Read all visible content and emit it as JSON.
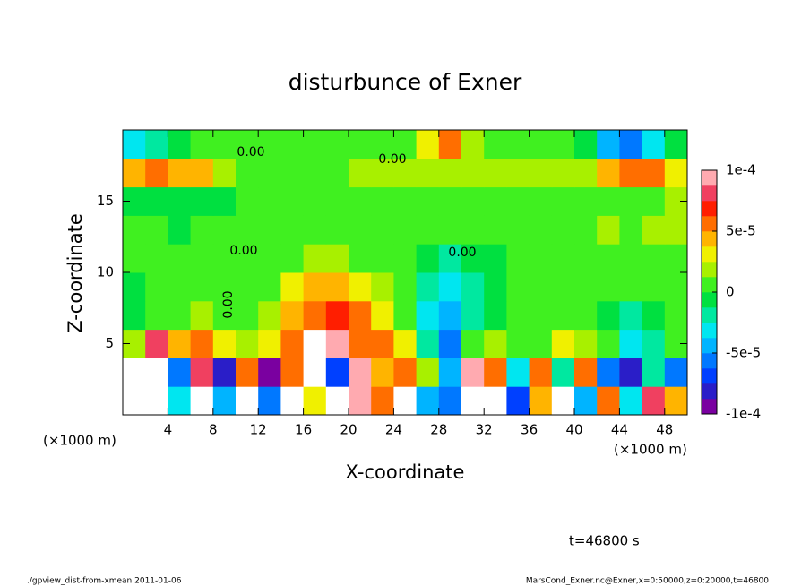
{
  "chart_data": {
    "type": "heatmap",
    "title": "disturbunce of Exner",
    "xlabel": "X-coordinate",
    "ylabel": "Z-coordinate",
    "x_unit_labels": [
      "(×1000 m)",
      "(×1000 m)"
    ],
    "annotation": "t=46800 s",
    "footer_left": "./gpview_dist-from-xmean  2011-01-06",
    "footer_right": "MarsCond_Exner.nc@Exner,x=0:50000,z=0:20000,t=46800",
    "contour_labels": [
      "0.00",
      "0.00",
      "0.00",
      "0.00",
      "0.00"
    ],
    "xlim": [
      0,
      50
    ],
    "ylim": [
      0,
      20
    ],
    "xticks": [
      4,
      8,
      12,
      16,
      20,
      24,
      28,
      32,
      36,
      40,
      44,
      48
    ],
    "yticks": [
      5,
      10,
      15
    ],
    "x": [
      1,
      3,
      5,
      7,
      9,
      11,
      13,
      15,
      17,
      19,
      21,
      23,
      25,
      27,
      29,
      31,
      33,
      35,
      37,
      39,
      41,
      43,
      45,
      47,
      49
    ],
    "y": [
      1,
      3,
      5,
      7,
      9,
      11,
      13,
      15,
      17,
      19
    ],
    "values": [
      [
        0.00012,
        0.00013,
        -3e-05,
        0.00011,
        -5e-05,
        0.00012,
        -6e-05,
        0.00014,
        3e-05,
        -0.00012,
        0.0001,
        5e-05,
        0.00013,
        -4e-05,
        -6e-05,
        0.00012,
        0.00014,
        -7e-05,
        4e-05,
        0.00011,
        -4e-05,
        6e-05,
        -3e-05,
        8e-05,
        4e-05
      ],
      [
        0.00012,
        0.00015,
        -6e-05,
        8e-05,
        -8e-05,
        5e-05,
        -9e-05,
        6e-05,
        0.00012,
        -7e-05,
        9e-05,
        4e-05,
        6e-05,
        2e-05,
        -4e-05,
        0.0001,
        6e-05,
        -3e-05,
        5e-05,
        -2e-05,
        6e-05,
        -6e-05,
        -8e-05,
        -2e-05,
        -6e-05
      ],
      [
        2e-05,
        8e-05,
        4e-05,
        6e-05,
        3e-05,
        2e-05,
        3e-05,
        6e-05,
        0.00012,
        9e-05,
        6e-05,
        5e-05,
        3e-05,
        -2e-05,
        -6e-05,
        0,
        2e-05,
        1e-05,
        1e-05,
        3e-05,
        2e-05,
        0,
        -3e-05,
        -2e-05,
        0
      ],
      [
        -1e-05,
        0,
        1e-05,
        2e-05,
        1e-05,
        0,
        2e-05,
        4e-05,
        6e-05,
        7e-05,
        5e-05,
        3e-05,
        0,
        -3e-05,
        -5e-05,
        -2e-05,
        -1e-05,
        0,
        0,
        1e-05,
        0,
        -1e-05,
        -2e-05,
        -1e-05,
        0
      ],
      [
        -1e-05,
        0,
        0,
        0,
        0,
        0,
        1e-05,
        3e-05,
        4e-05,
        4e-05,
        3e-05,
        2e-05,
        1e-05,
        -2e-05,
        -3e-05,
        -2e-05,
        -1e-05,
        0,
        0,
        0,
        0,
        0,
        0,
        0,
        0
      ],
      [
        0,
        0,
        0,
        0,
        0,
        0,
        1e-05,
        1e-05,
        2e-05,
        2e-05,
        1e-05,
        0,
        0,
        -1e-05,
        -2e-05,
        -1e-05,
        -1e-05,
        0,
        0,
        0,
        0,
        1e-05,
        1e-05,
        1e-05,
        1e-05
      ],
      [
        0,
        0,
        -1e-05,
        0,
        0,
        0,
        0,
        1e-05,
        1e-05,
        1e-05,
        1e-05,
        1e-05,
        1e-05,
        1e-05,
        1e-05,
        1e-05,
        1e-05,
        1e-05,
        1e-05,
        1e-05,
        1e-05,
        2e-05,
        1e-05,
        2e-05,
        2e-05
      ],
      [
        -1e-05,
        -1e-05,
        -1e-05,
        -1e-05,
        -1e-05,
        0,
        0,
        0,
        0,
        0,
        0,
        0,
        1e-05,
        1e-05,
        1e-05,
        1e-05,
        1e-05,
        1e-05,
        1e-05,
        1e-05,
        1e-05,
        1e-05,
        1e-05,
        1e-05,
        2e-05
      ],
      [
        4e-05,
        5e-05,
        4e-05,
        4e-05,
        2e-05,
        0,
        0,
        0,
        1e-05,
        1e-05,
        2e-05,
        2e-05,
        2e-05,
        2e-05,
        2e-05,
        2e-05,
        2e-05,
        2e-05,
        2e-05,
        2e-05,
        2e-05,
        4e-05,
        5e-05,
        5e-05,
        3e-05
      ],
      [
        -3e-05,
        -2e-05,
        -1e-05,
        0,
        0,
        0,
        0,
        0,
        0,
        1e-05,
        1e-05,
        1e-05,
        1e-05,
        3e-05,
        5e-05,
        2e-05,
        1e-05,
        1e-05,
        1e-05,
        0,
        -1e-05,
        -5e-05,
        -6e-05,
        -3e-05,
        -1e-05
      ]
    ],
    "clim": [
      -0.0001,
      0.0001
    ],
    "cticks": [
      {
        "value": 0.0001,
        "label": "1e-4"
      },
      {
        "value": 5e-05,
        "label": "5e-5"
      },
      0,
      {
        "value": -5e-05,
        "label": "-5e-5"
      },
      {
        "value": -0.0001,
        "label": "-1e-4"
      }
    ],
    "colors": [
      "#7a00a0",
      "#2a1ec8",
      "#0040ff",
      "#0078ff",
      "#00b4ff",
      "#00e6f0",
      "#00e8a0",
      "#00e040",
      "#40f020",
      "#a8f000",
      "#f0f000",
      "#ffb400",
      "#ff6e00",
      "#ff1e00",
      "#f04060",
      "#ffaab0"
    ],
    "out_of_range_color": "#ffffff"
  }
}
